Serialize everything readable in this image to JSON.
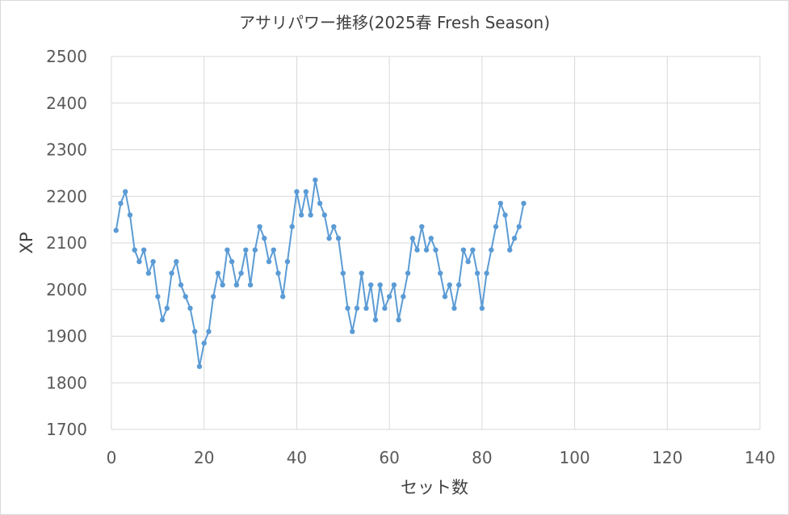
{
  "chart_data": {
    "type": "line",
    "title": "アサリパワー推移(2025春 Fresh Season)",
    "xlabel": "セット数",
    "ylabel": "XP",
    "xlim": [
      0,
      140
    ],
    "ylim": [
      1700,
      2500
    ],
    "x_ticks": [
      0,
      20,
      40,
      60,
      80,
      100,
      120,
      140
    ],
    "y_ticks": [
      1700,
      1800,
      1900,
      2000,
      2100,
      2200,
      2300,
      2400,
      2500
    ],
    "grid": true,
    "legend": "none",
    "series": [
      {
        "color": "#5b9bd5",
        "x": [
          1,
          2,
          3,
          4,
          5,
          6,
          7,
          8,
          9,
          10,
          11,
          12,
          13,
          14,
          15,
          16,
          17,
          18,
          19,
          20,
          21,
          22,
          23,
          24,
          25,
          26,
          27,
          28,
          29,
          30,
          31,
          32,
          33,
          34,
          35,
          36,
          37,
          38,
          39,
          40,
          41,
          42,
          43,
          44,
          45,
          46,
          47,
          48,
          49,
          50,
          51,
          52,
          53,
          54,
          55,
          56,
          57,
          58,
          59,
          60,
          61,
          62,
          63,
          64,
          65,
          66,
          67,
          68,
          69,
          70,
          71,
          72,
          73,
          74,
          75,
          76,
          77,
          78,
          79,
          80,
          81,
          82,
          83,
          84,
          85,
          86,
          87,
          88,
          89
        ],
        "values": [
          2127,
          2185,
          2210,
          2160,
          2085,
          2060,
          2085,
          2035,
          2060,
          1985,
          1935,
          1960,
          2035,
          2060,
          2010,
          1985,
          1960,
          1910,
          1835,
          1885,
          1910,
          1985,
          2035,
          2010,
          2085,
          2060,
          2010,
          2035,
          2085,
          2010,
          2085,
          2135,
          2110,
          2060,
          2085,
          2035,
          1985,
          2060,
          2135,
          2210,
          2160,
          2210,
          2160,
          2235,
          2185,
          2160,
          2110,
          2135,
          2110,
          2035,
          1960,
          1910,
          1960,
          2035,
          1960,
          2010,
          1935,
          2010,
          1960,
          1985,
          2010,
          1935,
          1985,
          2035,
          2110,
          2085,
          2135,
          2085,
          2110,
          2085,
          2035,
          1985,
          2010,
          1960,
          2010,
          2085,
          2060,
          2085,
          2035,
          1960,
          2035,
          2085,
          2135,
          2185,
          2160,
          2085,
          2110,
          2135,
          2185
        ]
      }
    ]
  }
}
